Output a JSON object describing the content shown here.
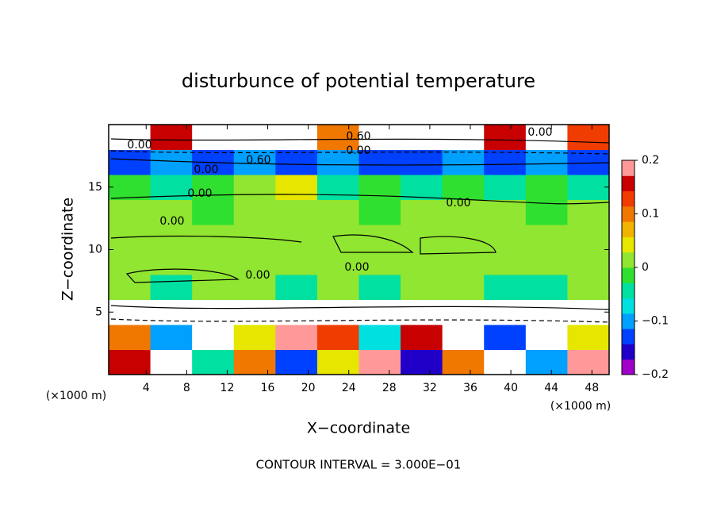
{
  "chart_data": {
    "type": "contour",
    "title": "disturbunce of potential temperature",
    "xlabel": "X−coordinate",
    "ylabel": "Z−coordinate",
    "x_units": "(×1000 m)",
    "annotation": "CONTOUR INTERVAL = 3.000E−01",
    "xlim": [
      0.3,
      49.7
    ],
    "ylim": [
      0,
      20
    ],
    "xticks": [
      4,
      8,
      12,
      16,
      20,
      24,
      28,
      32,
      36,
      40,
      44,
      48
    ],
    "yticks": [
      5,
      10,
      15
    ],
    "clim": [
      -0.2,
      0.2
    ],
    "cticks": [
      {
        "value": -0.2,
        "label": "−0.2"
      },
      {
        "value": -0.1,
        "label": "−0.1"
      },
      0,
      0.1,
      0.2
    ],
    "colors": [
      "#a000c8",
      "#2000c8",
      "#0040ff",
      "#00a0ff",
      "#00e0e0",
      "#00e0a0",
      "#30e030",
      "#90e630",
      "#e6e600",
      "#f0b400",
      "#f07800",
      "#f03c00",
      "#c80000",
      "#ff9999"
    ],
    "over_color": "#ffffff",
    "contour_labels": [
      "0.60",
      "0.00",
      "0.00",
      "0.00",
      "0.60",
      "0.00",
      "0.00",
      "0.00",
      "0.00",
      "0.00",
      "0.00"
    ],
    "z": [
      [
        0.15,
        0.3,
        -0.05,
        0.1,
        -0.12,
        0.05,
        0.18,
        -0.15,
        0.1,
        0.3,
        -0.1,
        0.2
      ],
      [
        0.1,
        -0.1,
        0.3,
        0.05,
        0.2,
        0.12,
        -0.08,
        0.15,
        0.3,
        -0.12,
        0.25,
        0.05
      ],
      [
        0.3,
        0.3,
        0.3,
        0.3,
        0.3,
        0.3,
        0.3,
        0.3,
        0.3,
        0.3,
        0.3,
        0.3
      ],
      [
        0.0,
        -0.03,
        0.01,
        0.0,
        -0.03,
        0.02,
        -0.04,
        0.0,
        0.01,
        -0.05,
        -0.03,
        0.0
      ],
      [
        0.01,
        0.02,
        0.0,
        0.01,
        0.02,
        0.01,
        0.0,
        0.01,
        0.02,
        0.01,
        0.0,
        0.01
      ],
      [
        0.02,
        0.01,
        0.02,
        0.01,
        0.0,
        0.02,
        0.01,
        0.02,
        0.01,
        0.02,
        0.01,
        0.02
      ],
      [
        0.01,
        0.0,
        -0.02,
        0.0,
        0.01,
        0.0,
        -0.02,
        0.01,
        0.0,
        0.01,
        -0.02,
        0.01
      ],
      [
        -0.02,
        -0.03,
        -0.02,
        0.0,
        0.04,
        -0.03,
        -0.02,
        -0.03,
        -0.02,
        -0.03,
        -0.02,
        -0.03
      ],
      [
        -0.12,
        -0.1,
        -0.14,
        -0.1,
        -0.12,
        -0.1,
        -0.12,
        -0.14,
        -0.1,
        -0.12,
        -0.1,
        -0.12
      ],
      [
        0.3,
        0.15,
        0.3,
        0.3,
        0.3,
        0.1,
        0.3,
        0.3,
        0.3,
        0.15,
        0.3,
        0.12
      ]
    ]
  }
}
